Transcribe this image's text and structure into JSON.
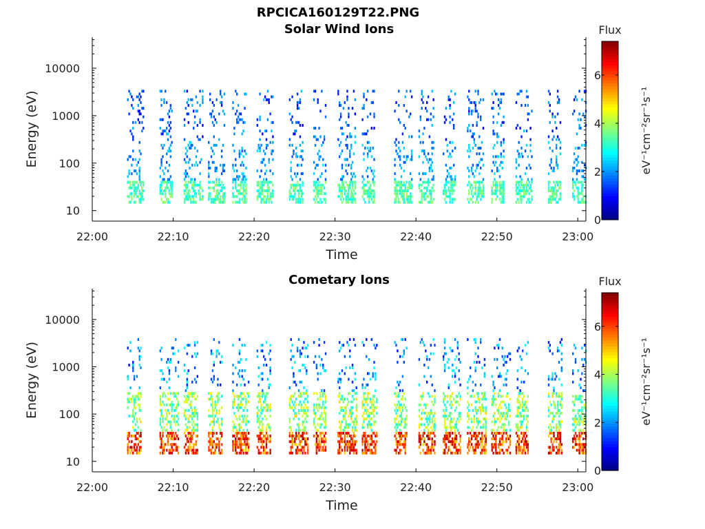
{
  "figure_title": "RPCICA160129T22.PNG",
  "colors": {
    "colormap": [
      "#00007f",
      "#0000ff",
      "#007fff",
      "#00ffff",
      "#7fff7f",
      "#ffff00",
      "#ff7f00",
      "#ff0000",
      "#7f0000"
    ],
    "axes": "#000000",
    "background": "#ffffff"
  },
  "chart_data": [
    {
      "type": "heatmap",
      "title": "Solar Wind Ions",
      "xlabel": "Time",
      "ylabel": "Energy (eV)",
      "y_scale": "log",
      "xlim": [
        "22:00",
        "23:01"
      ],
      "ylim": [
        6,
        45000
      ],
      "x_ticks": [
        "22:00",
        "22:10",
        "22:20",
        "22:30",
        "22:40",
        "22:50",
        "23:00"
      ],
      "y_ticks": [
        "10",
        "100",
        "1000",
        "10000"
      ],
      "colorbar": {
        "label": "eV⁻¹cm⁻²sr⁻¹s⁻¹",
        "title": "Flux",
        "range": [
          0,
          7.4
        ],
        "ticks": [
          "0",
          "2",
          "4",
          "6"
        ]
      },
      "burst_start_times": [
        "22:04",
        "22:08",
        "22:11",
        "22:14",
        "22:17",
        "22:20",
        "22:24",
        "22:27",
        "22:30",
        "22:33",
        "22:37",
        "22:40",
        "22:43",
        "22:46",
        "22:49",
        "22:52",
        "22:56",
        "22:59"
      ],
      "burst_pattern": {
        "energy_range_eV": [
          15,
          3500
        ],
        "band_peak_energy_eV": 25,
        "band_peak_flux": 3.6,
        "high_energy_flux": 2.0
      }
    },
    {
      "type": "heatmap",
      "title": "Cometary Ions",
      "xlabel": "Time",
      "ylabel": "Energy (eV)",
      "y_scale": "log",
      "xlim": [
        "22:00",
        "23:01"
      ],
      "ylim": [
        6,
        45000
      ],
      "x_ticks": [
        "22:00",
        "22:10",
        "22:20",
        "22:30",
        "22:40",
        "22:50",
        "23:00"
      ],
      "y_ticks": [
        "10",
        "100",
        "1000",
        "10000"
      ],
      "colorbar": {
        "label": "eV⁻¹cm⁻²sr⁻¹s⁻¹",
        "title": "Flux",
        "range": [
          0,
          7.4
        ],
        "ticks": [
          "0",
          "2",
          "4",
          "6"
        ]
      },
      "burst_start_times": [
        "22:04",
        "22:08",
        "22:11",
        "22:14",
        "22:17",
        "22:20",
        "22:24",
        "22:27",
        "22:30",
        "22:33",
        "22:37",
        "22:40",
        "22:43",
        "22:46",
        "22:49",
        "22:52",
        "22:56",
        "22:59"
      ],
      "burst_pattern": {
        "energy_range_eV": [
          15,
          4000
        ],
        "band_peak_energy_eV": 25,
        "band_peak_flux": 6.5,
        "mid_energy_flux": 4.5,
        "high_energy_flux": 2.5
      }
    }
  ]
}
